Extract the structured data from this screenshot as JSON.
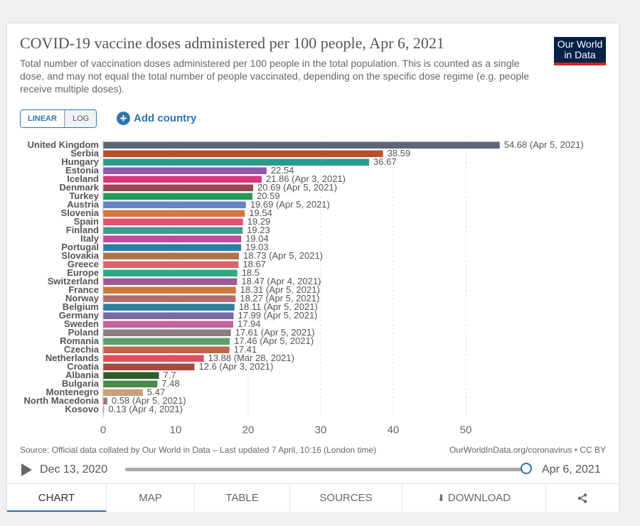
{
  "title": "COVID-19 vaccine doses administered per 100 people, Apr 6, 2021",
  "subtitle": "Total number of vaccination doses administered per 100 people in the total population. This is counted as a single dose, and may not equal the total number of people vaccinated, depending on the specific dose regime (e.g. people receive multiple doses).",
  "logo": {
    "line1": "Our World",
    "line2": "in Data",
    "bg": "#002147",
    "accent": "#ce261e"
  },
  "controls": {
    "linear_label": "LINEAR",
    "log_label": "LOG",
    "add_country_label": "Add country",
    "add_icon": "plus-circle-icon"
  },
  "source": "Source: Official data collated by Our World in Data – Last updated 7 April, 10:16 (London time)",
  "owid_url": "OurWorldInData.org/coronavirus • CC BY",
  "timeline": {
    "start_date": "Dec 13, 2020",
    "end_date": "Apr 6, 2021",
    "position": 1.0
  },
  "tabs": [
    {
      "label": "CHART",
      "active": true
    },
    {
      "label": "MAP"
    },
    {
      "label": "TABLE"
    },
    {
      "label": "SOURCES"
    },
    {
      "label": "DOWNLOAD",
      "icon": "download-icon"
    },
    {
      "label": "",
      "icon": "share-icon"
    }
  ],
  "chart_data": {
    "type": "bar",
    "orientation": "horizontal",
    "xlim": [
      0,
      55
    ],
    "xticks": [
      0,
      10,
      20,
      30,
      40,
      50
    ],
    "grid": true,
    "bars": [
      {
        "name": "United Kingdom",
        "value": 54.68,
        "label": "54.68 (Apr 5, 2021)",
        "color": "#5b6678"
      },
      {
        "name": "Serbia",
        "value": 38.59,
        "label": "38.59",
        "color": "#b9502c"
      },
      {
        "name": "Hungary",
        "value": 36.67,
        "label": "36.67",
        "color": "#2a9c8f"
      },
      {
        "name": "Estonia",
        "value": 22.54,
        "label": "22.54",
        "color": "#8e5ab1"
      },
      {
        "name": "Iceland",
        "value": 21.86,
        "label": "21.86 (Apr 3, 2021)",
        "color": "#d6397a"
      },
      {
        "name": "Denmark",
        "value": 20.69,
        "label": "20.69 (Apr 5, 2021)",
        "color": "#9a4856"
      },
      {
        "name": "Turkey",
        "value": 20.59,
        "label": "20.59",
        "color": "#1f9a5a"
      },
      {
        "name": "Austria",
        "value": 19.69,
        "label": "19.69 (Apr 5, 2021)",
        "color": "#6784c4"
      },
      {
        "name": "Slovenia",
        "value": 19.54,
        "label": "19.54",
        "color": "#d1793e"
      },
      {
        "name": "Spain",
        "value": 19.29,
        "label": "19.29",
        "color": "#e0536e"
      },
      {
        "name": "Finland",
        "value": 19.23,
        "label": "19.23",
        "color": "#3e9b8e"
      },
      {
        "name": "Italy",
        "value": 19.04,
        "label": "19.04",
        "color": "#c4489a"
      },
      {
        "name": "Portugal",
        "value": 19.03,
        "label": "19.03",
        "color": "#2a7fa5"
      },
      {
        "name": "Slovakia",
        "value": 18.73,
        "label": "18.73 (Apr 5, 2021)",
        "color": "#b0734a"
      },
      {
        "name": "Greece",
        "value": 18.67,
        "label": "18.67",
        "color": "#d96470"
      },
      {
        "name": "Europe",
        "value": 18.5,
        "label": "18.5",
        "color": "#2eaa82"
      },
      {
        "name": "Switzerland",
        "value": 18.47,
        "label": "18.47 (Apr 4, 2021)",
        "color": "#9d5a98"
      },
      {
        "name": "France",
        "value": 18.31,
        "label": "18.31 (Apr 5, 2021)",
        "color": "#cf7a3a"
      },
      {
        "name": "Norway",
        "value": 18.27,
        "label": "18.27 (Apr 5, 2021)",
        "color": "#b86a6a"
      },
      {
        "name": "Belgium",
        "value": 18.11,
        "label": "18.11 (Apr 5, 2021)",
        "color": "#2f7f9d"
      },
      {
        "name": "Germany",
        "value": 17.99,
        "label": "17.99 (Apr 5, 2021)",
        "color": "#7a6aa0"
      },
      {
        "name": "Sweden",
        "value": 17.94,
        "label": "17.94",
        "color": "#c85fa0"
      },
      {
        "name": "Poland",
        "value": 17.61,
        "label": "17.61 (Apr 5, 2021)",
        "color": "#8c7b82"
      },
      {
        "name": "Romania",
        "value": 17.46,
        "label": "17.46 (Apr 5, 2021)",
        "color": "#58a06a"
      },
      {
        "name": "Czechia",
        "value": 17.41,
        "label": "17.41",
        "color": "#c5654a"
      },
      {
        "name": "Netherlands",
        "value": 13.88,
        "label": "13.88 (Mar 28, 2021)",
        "color": "#e04e5e"
      },
      {
        "name": "Croatia",
        "value": 12.6,
        "label": "12.6 (Apr 3, 2021)",
        "color": "#a24a44"
      },
      {
        "name": "Albania",
        "value": 7.7,
        "label": "7.7",
        "color": "#2f5a2a"
      },
      {
        "name": "Bulgaria",
        "value": 7.48,
        "label": "7.48",
        "color": "#4a8a4a"
      },
      {
        "name": "Montenegro",
        "value": 5.47,
        "label": "5.47",
        "color": "#c9a07a"
      },
      {
        "name": "North Macedonia",
        "value": 0.58,
        "label": "0.58 (Apr 5, 2021)",
        "color": "#9a7a6a"
      },
      {
        "name": "Kosovo",
        "value": 0.13,
        "label": "0.13 (Apr 4, 2021)",
        "color": "#a08a8a"
      }
    ]
  }
}
